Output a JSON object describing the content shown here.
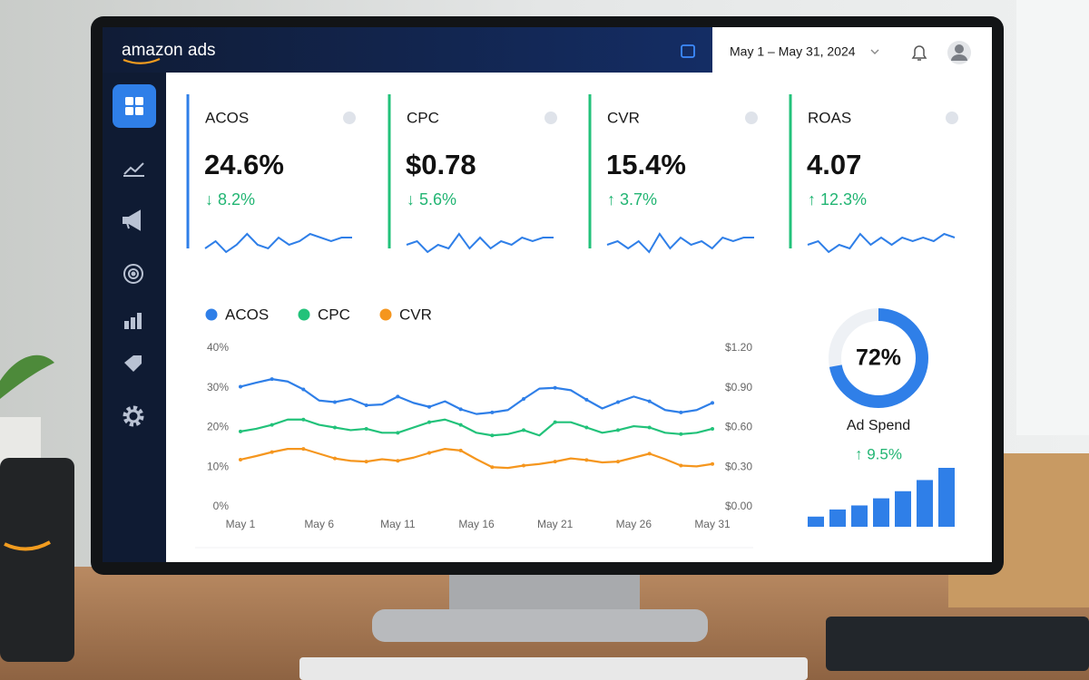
{
  "brand": "amazon ads",
  "date_range": "May 1 – May 31, 2024",
  "kpis": [
    {
      "label": "ACOS",
      "value": "24.6%",
      "change": "↓ 8.2%",
      "color": "#2f7fe8",
      "trend": [
        3,
        5,
        2,
        4,
        7,
        4,
        3,
        6,
        4,
        5,
        7,
        6,
        5,
        6,
        6
      ]
    },
    {
      "label": "CPC",
      "value": "$0.78",
      "change": "↓ 5.6%",
      "color": "#22c27a",
      "trend": [
        4,
        5,
        2,
        4,
        3,
        7,
        3,
        6,
        3,
        5,
        4,
        6,
        5,
        6,
        6
      ]
    },
    {
      "label": "CVR",
      "value": "15.4%",
      "change": "↑ 3.7%",
      "color": "#22c27a",
      "trend": [
        4,
        5,
        3,
        5,
        2,
        7,
        3,
        6,
        4,
        5,
        3,
        6,
        5,
        6,
        6
      ]
    },
    {
      "label": "ROAS",
      "value": "4.07",
      "change": "↑ 12.3%",
      "color": "#22c27a",
      "trend": [
        4,
        5,
        2,
        4,
        3,
        7,
        4,
        6,
        4,
        6,
        5,
        6,
        5,
        7,
        6
      ]
    }
  ],
  "chart_data": {
    "type": "line",
    "categories": [
      "May 1",
      null,
      null,
      null,
      null,
      "May 6",
      null,
      null,
      null,
      null,
      "May 11",
      null,
      null,
      null,
      null,
      "May 16",
      null,
      null,
      null,
      null,
      "May 21",
      null,
      null,
      null,
      null,
      "May 26",
      null,
      null,
      null,
      null,
      "May 31"
    ],
    "series": [
      {
        "name": "ACOS",
        "color": "#2f7fe8",
        "axis": "y",
        "values": [
          30.3,
          31.3,
          32.2,
          31.6,
          29.6,
          26.8,
          26.4,
          27.2,
          25.6,
          25.8,
          27.8,
          26.2,
          25.2,
          26.6,
          24.6,
          23.4,
          23.8,
          24.4,
          27.2,
          29.8,
          30.0,
          29.4,
          27.0,
          24.8,
          26.4,
          27.8,
          26.6,
          24.4,
          23.8,
          24.4,
          26.2
        ]
      },
      {
        "name": "CPC",
        "color": "#22c27a",
        "axis": "y2",
        "values": [
          0.57,
          0.59,
          0.62,
          0.66,
          0.66,
          0.62,
          0.6,
          0.58,
          0.59,
          0.56,
          0.56,
          0.6,
          0.64,
          0.66,
          0.62,
          0.56,
          0.54,
          0.55,
          0.58,
          0.54,
          0.64,
          0.64,
          0.6,
          0.56,
          0.58,
          0.61,
          0.6,
          0.56,
          0.55,
          0.56,
          0.59
        ]
      },
      {
        "name": "CVR",
        "color": "#f5961e",
        "axis": "y",
        "values": [
          11.9,
          12.8,
          13.8,
          14.6,
          14.6,
          13.4,
          12.2,
          11.6,
          11.4,
          12.0,
          11.6,
          12.4,
          13.6,
          14.6,
          14.2,
          12.0,
          10.0,
          9.8,
          10.4,
          10.8,
          11.4,
          12.2,
          11.8,
          11.2,
          11.4,
          12.4,
          13.4,
          12.0,
          10.4,
          10.2,
          10.8
        ]
      }
    ],
    "ylim": [
      0,
      40
    ],
    "yticks": [
      {
        "value": 0,
        "label": "0%"
      },
      {
        "value": 10,
        "label": "10%"
      },
      {
        "value": 20,
        "label": "20%"
      },
      {
        "value": 30,
        "label": "30%"
      },
      {
        "value": 40,
        "label": "40%"
      }
    ],
    "y2lim": [
      0,
      1.2
    ],
    "y2ticks": [
      {
        "value": 0,
        "label": "$0.00"
      },
      {
        "value": 0.3,
        "label": "$0.30"
      },
      {
        "value": 0.6,
        "label": "$0.60"
      },
      {
        "value": 0.9,
        "label": "$0.90"
      },
      {
        "value": 1.2,
        "label": "$1.20"
      }
    ],
    "legend": "top-left"
  },
  "ad_spend": {
    "value": 72,
    "value_label": "72%",
    "color": "#2f7fe8",
    "label": "Ad Spend",
    "change": "↑ 9.5%",
    "bars": [
      10,
      17,
      21,
      28,
      35,
      46,
      58
    ]
  }
}
